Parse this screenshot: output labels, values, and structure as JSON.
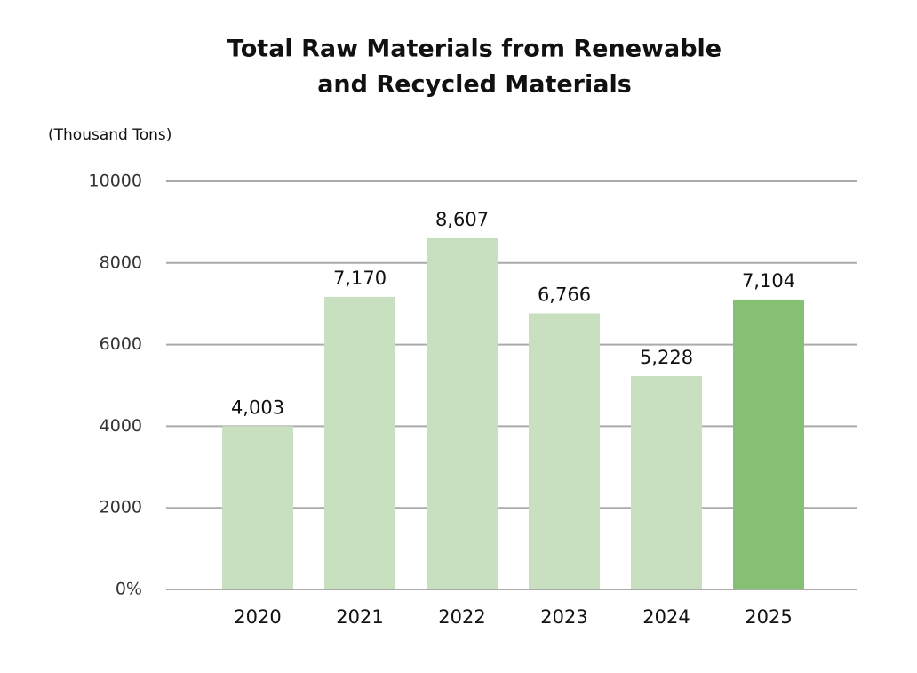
{
  "chart_data": {
    "type": "bar",
    "title": [
      "Total Raw Materials from Renewable",
      "and Recycled Materials"
    ],
    "y_label": "(Thousand Tons)",
    "categories": [
      "2020",
      "2021",
      "2022",
      "2023",
      "2024",
      "2025"
    ],
    "values": [
      4003,
      7170,
      8607,
      6766,
      5228,
      7104
    ],
    "value_labels": [
      "4,003",
      "7,170",
      "8,607",
      "6,766",
      "5,228",
      "7,104"
    ],
    "colors": [
      "#c8e0bf",
      "#c8e0bf",
      "#c8e0bf",
      "#c8e0bf",
      "#c8e0bf",
      "#86c072"
    ],
    "ylim": [
      0,
      10000
    ],
    "yticks": [
      {
        "value": 0,
        "label": "0%"
      },
      2000,
      4000,
      6000,
      8000,
      10000
    ],
    "grid": true
  }
}
